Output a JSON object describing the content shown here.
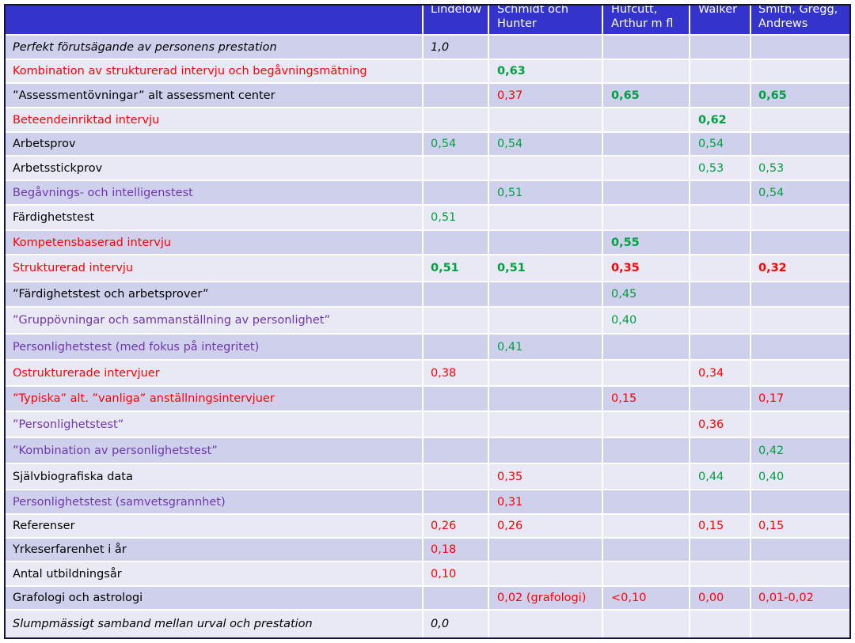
{
  "colors": {
    "header_background": "#3434CC",
    "header_text": "#FFFFFF",
    "band_dark": "#CFD1EC",
    "band_light": "#E8E9F5",
    "frame": "#12123A",
    "grid_lines": "#FFFFFF"
  },
  "table": {
    "columns": {
      "lindelow": "Lindelow",
      "schmidt_hunter": "Schmidt och\nHunter",
      "hufcutt_arthur": "Hufcutt,\nArthur m fl",
      "walker": "Walker",
      "smith_gregg_andrews": "Smith, Gregg,\nAndrews"
    },
    "rows": [
      {
        "label": "Perfekt förutsägande av personens prestation",
        "color": "#000000",
        "italic": true,
        "values": {
          "lindelow": {
            "text": "1,0",
            "color": "#000000",
            "italic": true
          }
        }
      },
      {
        "label": "Kombination av strukturerad intervju och begåvningsmätning",
        "color": "#FF0000",
        "values": {
          "schmidt_hunter": {
            "text": "0,63",
            "color": "#00A040",
            "bold": true
          }
        }
      },
      {
        "label": "”Assessmentövningar” alt assessment center",
        "color": "#000000",
        "values": {
          "schmidt_hunter": {
            "text": "0,37",
            "color": "#FF0000"
          },
          "hufcutt_arthur": {
            "text": "0,65",
            "color": "#00A040",
            "bold": true
          },
          "smith_gregg_andrews": {
            "text": "0,65",
            "color": "#00A040",
            "bold": true
          }
        }
      },
      {
        "label": "Beteendeinriktad intervju",
        "color": "#FF0000",
        "values": {
          "walker": {
            "text": "0,62",
            "color": "#00A040",
            "bold": true
          }
        }
      },
      {
        "label": "Arbetsprov",
        "color": "#000000",
        "values": {
          "lindelow": {
            "text": "0,54",
            "color": "#00A040"
          },
          "schmidt_hunter": {
            "text": "0,54",
            "color": "#00A040"
          },
          "walker": {
            "text": "0,54",
            "color": "#00A040"
          }
        }
      },
      {
        "label": "Arbetsstickprov",
        "color": "#000000",
        "values": {
          "walker": {
            "text": "0,53",
            "color": "#00A040"
          },
          "smith_gregg_andrews": {
            "text": "0,53",
            "color": "#00A040"
          }
        }
      },
      {
        "label": "Begåvnings- och intelligenstest",
        "color": "#7035B0",
        "values": {
          "schmidt_hunter": {
            "text": "0,51",
            "color": "#00A040"
          },
          "smith_gregg_andrews": {
            "text": "0,54",
            "color": "#00A040"
          }
        }
      },
      {
        "label": "Färdighetstest",
        "color": "#000000",
        "values": {
          "lindelow": {
            "text": "0,51",
            "color": "#00A040"
          }
        }
      },
      {
        "label": "Kompetensbaserad intervju",
        "color": "#FF0000",
        "values": {
          "hufcutt_arthur": {
            "text": "0,55",
            "color": "#00A040",
            "bold": true
          }
        }
      },
      {
        "label": "Strukturerad intervju",
        "color": "#FF0000",
        "values": {
          "lindelow": {
            "text": "0,51",
            "color": "#00A040",
            "bold": true
          },
          "schmidt_hunter": {
            "text": "0,51",
            "color": "#00A040",
            "bold": true
          },
          "hufcutt_arthur": {
            "text": "0,35",
            "color": "#FF0000",
            "bold": true
          },
          "smith_gregg_andrews": {
            "text": "0,32",
            "color": "#FF0000",
            "bold": true
          }
        }
      },
      {
        "label": "”Färdighetstest och arbetsprover”",
        "color": "#000000",
        "values": {
          "hufcutt_arthur": {
            "text": "0,45",
            "color": "#00A040"
          }
        }
      },
      {
        "label": "”Gruppövningar och sammanställning av personlighet”",
        "color": "#7035B0",
        "values": {
          "hufcutt_arthur": {
            "text": "0,40",
            "color": "#00A040"
          }
        }
      },
      {
        "label": "Personlighetstest (med fokus på integritet)",
        "color": "#7035B0",
        "values": {
          "schmidt_hunter": {
            "text": "0,41",
            "color": "#00A040"
          }
        }
      },
      {
        "label": "Ostrukturerade intervjuer",
        "color": "#FF0000",
        "values": {
          "lindelow": {
            "text": "0,38",
            "color": "#FF0000"
          },
          "walker": {
            "text": "0,34",
            "color": "#FF0000"
          }
        }
      },
      {
        "label": "”Typiska” alt. ”vanliga” anställningsintervjuer",
        "color": "#FF0000",
        "values": {
          "hufcutt_arthur": {
            "text": "0,15",
            "color": "#FF0000"
          },
          "smith_gregg_andrews": {
            "text": "0,17",
            "color": "#FF0000"
          }
        }
      },
      {
        "label": "”Personlighetstest”",
        "color": "#7035B0",
        "values": {
          "walker": {
            "text": "0,36",
            "color": "#FF0000"
          }
        }
      },
      {
        "label": "”Kombination av personlighetstest”",
        "color": "#7035B0",
        "values": {
          "smith_gregg_andrews": {
            "text": "0,42",
            "color": "#00A040"
          }
        }
      },
      {
        "label": "Självbiografiska data",
        "color": "#000000",
        "values": {
          "schmidt_hunter": {
            "text": "0,35",
            "color": "#FF0000"
          },
          "walker": {
            "text": "0,44",
            "color": "#00A040"
          },
          "smith_gregg_andrews": {
            "text": "0,40",
            "color": "#00A040"
          }
        }
      },
      {
        "label": "Personlighetstest (samvetsgrannhet)",
        "color": "#7035B0",
        "values": {
          "schmidt_hunter": {
            "text": "0,31",
            "color": "#FF0000"
          }
        }
      },
      {
        "label": "Referenser",
        "color": "#000000",
        "values": {
          "lindelow": {
            "text": "0,26",
            "color": "#FF0000"
          },
          "schmidt_hunter": {
            "text": "0,26",
            "color": "#FF0000"
          },
          "walker": {
            "text": "0,15",
            "color": "#FF0000"
          },
          "smith_gregg_andrews": {
            "text": "0,15",
            "color": "#FF0000"
          }
        }
      },
      {
        "label": "Yrkeserfarenhet i år",
        "color": "#000000",
        "values": {
          "lindelow": {
            "text": "0,18",
            "color": "#FF0000"
          }
        }
      },
      {
        "label": "Antal utbildningsår",
        "color": "#000000",
        "values": {
          "lindelow": {
            "text": "0,10",
            "color": "#FF0000"
          }
        }
      },
      {
        "label": "Grafologi och astrologi",
        "color": "#000000",
        "values": {
          "schmidt_hunter": {
            "text": "0,02 (grafologi)",
            "color": "#FF0000"
          },
          "hufcutt_arthur": {
            "text": "<0,10",
            "color": "#FF0000"
          },
          "walker": {
            "text": "0,00",
            "color": "#FF0000"
          },
          "smith_gregg_andrews": {
            "text": "0,01-0,02",
            "color": "#FF0000"
          }
        }
      },
      {
        "label": "Slumpmässigt samband mellan urval och prestation",
        "color": "#000000",
        "italic": true,
        "values": {
          "lindelow": {
            "text": "0,0",
            "color": "#000000",
            "italic": true
          }
        }
      }
    ]
  }
}
